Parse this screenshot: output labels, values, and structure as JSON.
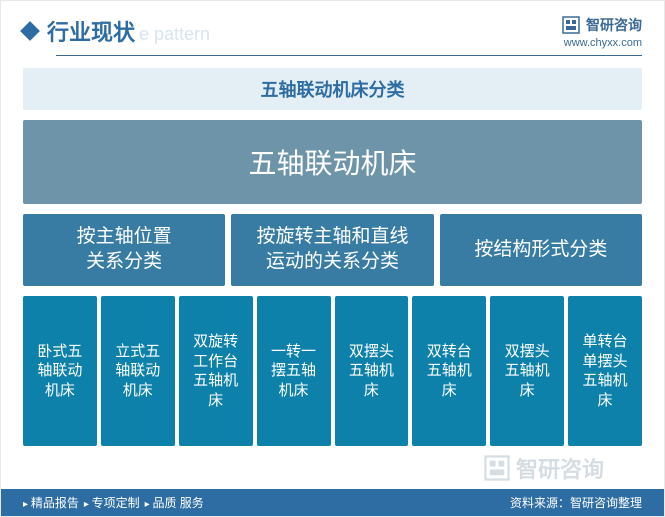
{
  "header": {
    "title_cn": "行业现状",
    "title_en": "e pattern",
    "brand": "智研咨询",
    "url": "www.chyxx.com",
    "title_color": "#2d6da3",
    "sub_color": "#d8e4ee"
  },
  "diagram": {
    "type": "tree",
    "title_bar": {
      "text": "五轴联动机床分类",
      "bg": "#e4eef5",
      "fg": "#2d6da3",
      "fontsize": 18
    },
    "root": {
      "text": "五轴联动机床",
      "bg": "#6e94a9",
      "fg": "#ffffff",
      "fontsize": 28
    },
    "categories": {
      "bg": "#387ca3",
      "fg": "#ffffff",
      "fontsize": 19,
      "items": [
        {
          "text": "按主轴位置\n关系分类"
        },
        {
          "text": "按旋转主轴和直线\n运动的关系分类"
        },
        {
          "text": "按结构形式分类"
        }
      ]
    },
    "leaves": {
      "bg": "#0e81ab",
      "fg": "#ffffff",
      "fontsize": 15,
      "items": [
        {
          "text": "卧式五轴联动机床"
        },
        {
          "text": "立式五轴联动机床"
        },
        {
          "text": "双旋转工作台五轴机床"
        },
        {
          "text": "一转一摆五轴机床"
        },
        {
          "text": "双摆头五轴机床"
        },
        {
          "text": "双转台五轴机床"
        },
        {
          "text": "双摆头五轴机床"
        },
        {
          "text": "单转台单摆头五轴机床"
        }
      ]
    }
  },
  "footer": {
    "items": [
      "精品报告",
      "专项定制",
      "品质 服务"
    ],
    "source": "资料来源：智研咨询整理",
    "bg": "#2d6da3",
    "fg": "#ffffff"
  },
  "watermark": {
    "text": "智研咨询"
  }
}
